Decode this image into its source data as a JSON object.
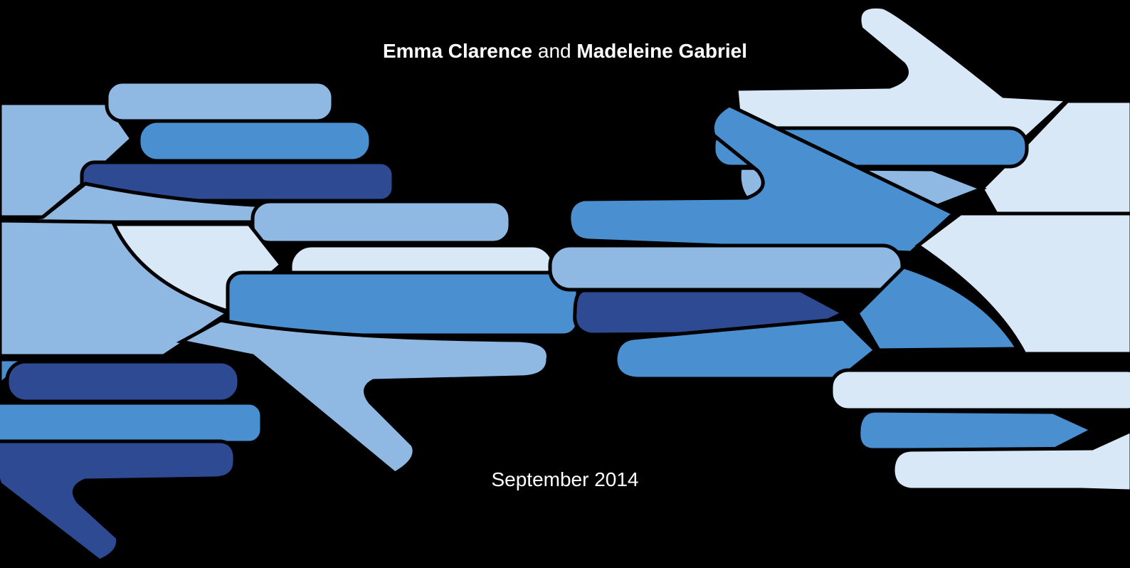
{
  "header": {
    "author_1": "Emma Clarence",
    "conjunction": "and",
    "author_2": "Madeleine Gabriel"
  },
  "date": "September 2014"
}
